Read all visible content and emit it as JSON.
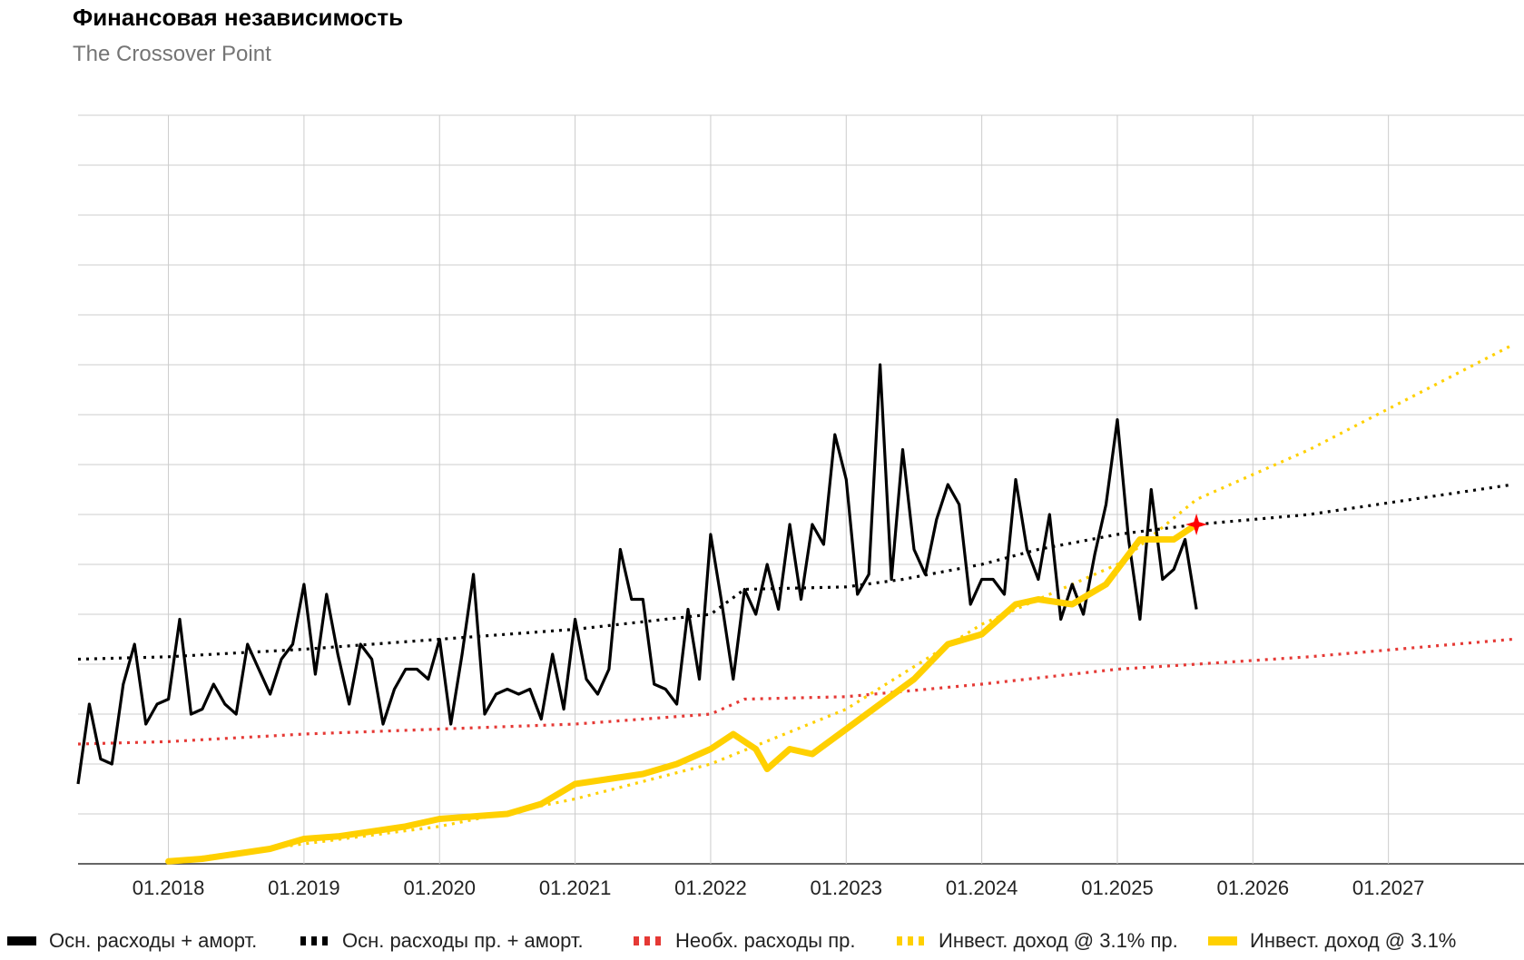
{
  "header": {
    "title": "Финансовая независимость",
    "subtitle": "The Crossover Point"
  },
  "colors": {
    "black": "#000000",
    "red": "#e53935",
    "yellow": "#ffd000",
    "grid": "#cccccc",
    "marker": "#ff0000"
  },
  "chart_data": {
    "type": "line",
    "title": "Финансовая независимость",
    "subtitle": "The Crossover Point",
    "x_axis": {
      "type": "date",
      "min": "2017-05",
      "max": "2027-12",
      "tick_labels": [
        "01.2018",
        "01.2019",
        "01.2020",
        "01.2021",
        "01.2022",
        "01.2023",
        "01.2024",
        "01.2025",
        "01.2026",
        "01.2027"
      ],
      "tick_dates": [
        "2018-01",
        "2019-01",
        "2020-01",
        "2021-01",
        "2022-01",
        "2023-01",
        "2024-01",
        "2025-01",
        "2026-01",
        "2027-01"
      ]
    },
    "y_axis": {
      "ylim": [
        0,
        15
      ],
      "gridlines": 15,
      "tick_labels_shown": false
    },
    "grid": true,
    "legend_position": "bottom",
    "crossover_marker": {
      "date": "2025-08",
      "value": 6.8,
      "symbol": "star"
    },
    "series": [
      {
        "name": "Осн. расходы + аморт.",
        "style": "solid",
        "color": "black",
        "points": [
          [
            "2017-05",
            1.6
          ],
          [
            "2017-06",
            3.2
          ],
          [
            "2017-07",
            2.1
          ],
          [
            "2017-08",
            2.0
          ],
          [
            "2017-09",
            3.6
          ],
          [
            "2017-10",
            4.4
          ],
          [
            "2017-11",
            2.8
          ],
          [
            "2017-12",
            3.2
          ],
          [
            "2018-01",
            3.3
          ],
          [
            "2018-02",
            4.9
          ],
          [
            "2018-03",
            3.0
          ],
          [
            "2018-04",
            3.1
          ],
          [
            "2018-05",
            3.6
          ],
          [
            "2018-06",
            3.2
          ],
          [
            "2018-07",
            3.0
          ],
          [
            "2018-08",
            4.4
          ],
          [
            "2018-09",
            3.9
          ],
          [
            "2018-10",
            3.4
          ],
          [
            "2018-11",
            4.1
          ],
          [
            "2018-12",
            4.4
          ],
          [
            "2019-01",
            5.6
          ],
          [
            "2019-02",
            3.8
          ],
          [
            "2019-03",
            5.4
          ],
          [
            "2019-04",
            4.2
          ],
          [
            "2019-05",
            3.2
          ],
          [
            "2019-06",
            4.4
          ],
          [
            "2019-07",
            4.1
          ],
          [
            "2019-08",
            2.8
          ],
          [
            "2019-09",
            3.5
          ],
          [
            "2019-10",
            3.9
          ],
          [
            "2019-11",
            3.9
          ],
          [
            "2019-12",
            3.7
          ],
          [
            "2020-01",
            4.5
          ],
          [
            "2020-02",
            2.8
          ],
          [
            "2020-03",
            4.2
          ],
          [
            "2020-04",
            5.8
          ],
          [
            "2020-05",
            3.0
          ],
          [
            "2020-06",
            3.4
          ],
          [
            "2020-07",
            3.5
          ],
          [
            "2020-08",
            3.4
          ],
          [
            "2020-09",
            3.5
          ],
          [
            "2020-10",
            2.9
          ],
          [
            "2020-11",
            4.2
          ],
          [
            "2020-12",
            3.1
          ],
          [
            "2021-01",
            4.9
          ],
          [
            "2021-02",
            3.7
          ],
          [
            "2021-03",
            3.4
          ],
          [
            "2021-04",
            3.9
          ],
          [
            "2021-05",
            6.3
          ],
          [
            "2021-06",
            5.3
          ],
          [
            "2021-07",
            5.3
          ],
          [
            "2021-08",
            3.6
          ],
          [
            "2021-09",
            3.5
          ],
          [
            "2021-10",
            3.2
          ],
          [
            "2021-11",
            5.1
          ],
          [
            "2021-12",
            3.7
          ],
          [
            "2022-01",
            6.6
          ],
          [
            "2022-02",
            5.2
          ],
          [
            "2022-03",
            3.7
          ],
          [
            "2022-04",
            5.5
          ],
          [
            "2022-05",
            5.0
          ],
          [
            "2022-06",
            6.0
          ],
          [
            "2022-07",
            5.1
          ],
          [
            "2022-08",
            6.8
          ],
          [
            "2022-09",
            5.3
          ],
          [
            "2022-10",
            6.8
          ],
          [
            "2022-11",
            6.4
          ],
          [
            "2022-12",
            8.6
          ],
          [
            "2023-01",
            7.7
          ],
          [
            "2023-02",
            5.4
          ],
          [
            "2023-03",
            5.8
          ],
          [
            "2023-04",
            10.0
          ],
          [
            "2023-05",
            5.7
          ],
          [
            "2023-06",
            8.3
          ],
          [
            "2023-07",
            6.3
          ],
          [
            "2023-08",
            5.8
          ],
          [
            "2023-09",
            6.9
          ],
          [
            "2023-10",
            7.6
          ],
          [
            "2023-11",
            7.2
          ],
          [
            "2023-12",
            5.2
          ],
          [
            "2024-01",
            5.7
          ],
          [
            "2024-02",
            5.7
          ],
          [
            "2024-03",
            5.4
          ],
          [
            "2024-04",
            7.7
          ],
          [
            "2024-05",
            6.3
          ],
          [
            "2024-06",
            5.7
          ],
          [
            "2024-07",
            7.0
          ],
          [
            "2024-08",
            4.9
          ],
          [
            "2024-09",
            5.6
          ],
          [
            "2024-10",
            5.0
          ],
          [
            "2024-11",
            6.2
          ],
          [
            "2024-12",
            7.2
          ],
          [
            "2025-01",
            8.9
          ],
          [
            "2025-02",
            6.5
          ],
          [
            "2025-03",
            4.9
          ],
          [
            "2025-04",
            7.5
          ],
          [
            "2025-05",
            5.7
          ],
          [
            "2025-06",
            5.9
          ],
          [
            "2025-07",
            6.5
          ],
          [
            "2025-08",
            5.1
          ]
        ]
      },
      {
        "name": "Осн. расходы пр. + аморт.",
        "style": "dotted",
        "color": "black",
        "points": [
          [
            "2017-05",
            4.1
          ],
          [
            "2018-01",
            4.15
          ],
          [
            "2019-01",
            4.3
          ],
          [
            "2020-01",
            4.5
          ],
          [
            "2021-01",
            4.7
          ],
          [
            "2022-01",
            5.0
          ],
          [
            "2022-04",
            5.5
          ],
          [
            "2023-01",
            5.55
          ],
          [
            "2023-06",
            5.7
          ],
          [
            "2024-01",
            6.0
          ],
          [
            "2024-06",
            6.3
          ],
          [
            "2025-01",
            6.6
          ],
          [
            "2025-08",
            6.8
          ],
          [
            "2026-06",
            7.0
          ],
          [
            "2027-12",
            7.6
          ]
        ]
      },
      {
        "name": "Необх. расходы пр.",
        "style": "dotted",
        "color": "red",
        "points": [
          [
            "2017-05",
            2.4
          ],
          [
            "2018-01",
            2.45
          ],
          [
            "2019-01",
            2.6
          ],
          [
            "2020-01",
            2.7
          ],
          [
            "2021-01",
            2.8
          ],
          [
            "2022-01",
            3.0
          ],
          [
            "2022-04",
            3.3
          ],
          [
            "2023-01",
            3.35
          ],
          [
            "2024-01",
            3.6
          ],
          [
            "2025-01",
            3.9
          ],
          [
            "2025-08",
            4.0
          ],
          [
            "2026-06",
            4.15
          ],
          [
            "2027-12",
            4.5
          ]
        ]
      },
      {
        "name": "Инвест. доход @ 3.1% пр.",
        "style": "dotted",
        "color": "yellow",
        "points": [
          [
            "2018-01",
            0.05
          ],
          [
            "2019-01",
            0.4
          ],
          [
            "2020-01",
            0.75
          ],
          [
            "2021-01",
            1.3
          ],
          [
            "2022-01",
            2.0
          ],
          [
            "2023-01",
            3.1
          ],
          [
            "2024-01",
            4.8
          ],
          [
            "2025-01",
            6.0
          ],
          [
            "2025-08",
            7.3
          ],
          [
            "2026-06",
            8.3
          ],
          [
            "2027-12",
            10.4
          ]
        ]
      },
      {
        "name": "Инвест. доход @ 3.1%",
        "style": "solid",
        "color": "yellow",
        "points": [
          [
            "2018-01",
            0.05
          ],
          [
            "2018-04",
            0.1
          ],
          [
            "2018-07",
            0.2
          ],
          [
            "2018-10",
            0.3
          ],
          [
            "2019-01",
            0.5
          ],
          [
            "2019-04",
            0.55
          ],
          [
            "2019-07",
            0.65
          ],
          [
            "2019-10",
            0.75
          ],
          [
            "2020-01",
            0.9
          ],
          [
            "2020-04",
            0.95
          ],
          [
            "2020-07",
            1.0
          ],
          [
            "2020-10",
            1.2
          ],
          [
            "2021-01",
            1.6
          ],
          [
            "2021-04",
            1.7
          ],
          [
            "2021-07",
            1.8
          ],
          [
            "2021-10",
            2.0
          ],
          [
            "2022-01",
            2.3
          ],
          [
            "2022-03",
            2.6
          ],
          [
            "2022-05",
            2.3
          ],
          [
            "2022-06",
            1.9
          ],
          [
            "2022-08",
            2.3
          ],
          [
            "2022-10",
            2.2
          ],
          [
            "2023-01",
            2.7
          ],
          [
            "2023-04",
            3.2
          ],
          [
            "2023-07",
            3.7
          ],
          [
            "2023-10",
            4.4
          ],
          [
            "2024-01",
            4.6
          ],
          [
            "2024-04",
            5.2
          ],
          [
            "2024-06",
            5.3
          ],
          [
            "2024-09",
            5.2
          ],
          [
            "2024-12",
            5.6
          ],
          [
            "2025-03",
            6.5
          ],
          [
            "2025-06",
            6.5
          ],
          [
            "2025-08",
            6.8
          ]
        ]
      }
    ]
  },
  "legend": [
    {
      "label": "Осн. расходы + аморт.",
      "style": "solid",
      "color": "#000000"
    },
    {
      "label": "Осн. расходы пр. + аморт.",
      "style": "dotted",
      "color": "#000000"
    },
    {
      "label": "Необх. расходы пр.",
      "style": "dotted",
      "color": "#e53935"
    },
    {
      "label": "Инвест. доход @ 3.1% пр.",
      "style": "dotted",
      "color": "#ffd000"
    },
    {
      "label": "Инвест. доход @ 3.1%",
      "style": "solid",
      "color": "#ffd000"
    }
  ]
}
